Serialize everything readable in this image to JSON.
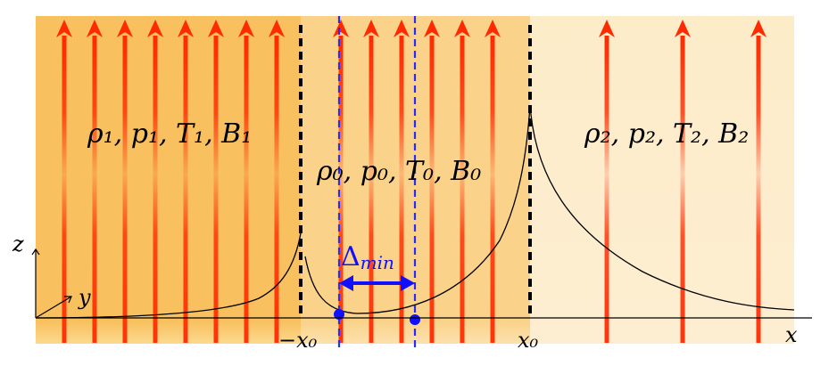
{
  "regions": {
    "left": {
      "label": "ρ₁, p₁, T₁, B₁",
      "color": "#f8c05e"
    },
    "middle": {
      "label": "ρ₀, p₀, T₀, B₀",
      "color": "#fad28a"
    },
    "right": {
      "label": "ρ₂, p₂, T₂, B₂",
      "color": "#fdecc8"
    }
  },
  "axes": {
    "x_label": "x",
    "y_label": "y",
    "z_label": "z",
    "left_boundary_label": "−x₀",
    "right_boundary_label": "x₀"
  },
  "annotations": {
    "delta_label": "Δ",
    "delta_subscript": "min"
  },
  "colors": {
    "field_line": "#ff2a00",
    "boundary": "#000000",
    "dashed_marker": "#2a2aff",
    "delta_arrow": "#1010ff",
    "curve": "#000000"
  }
}
